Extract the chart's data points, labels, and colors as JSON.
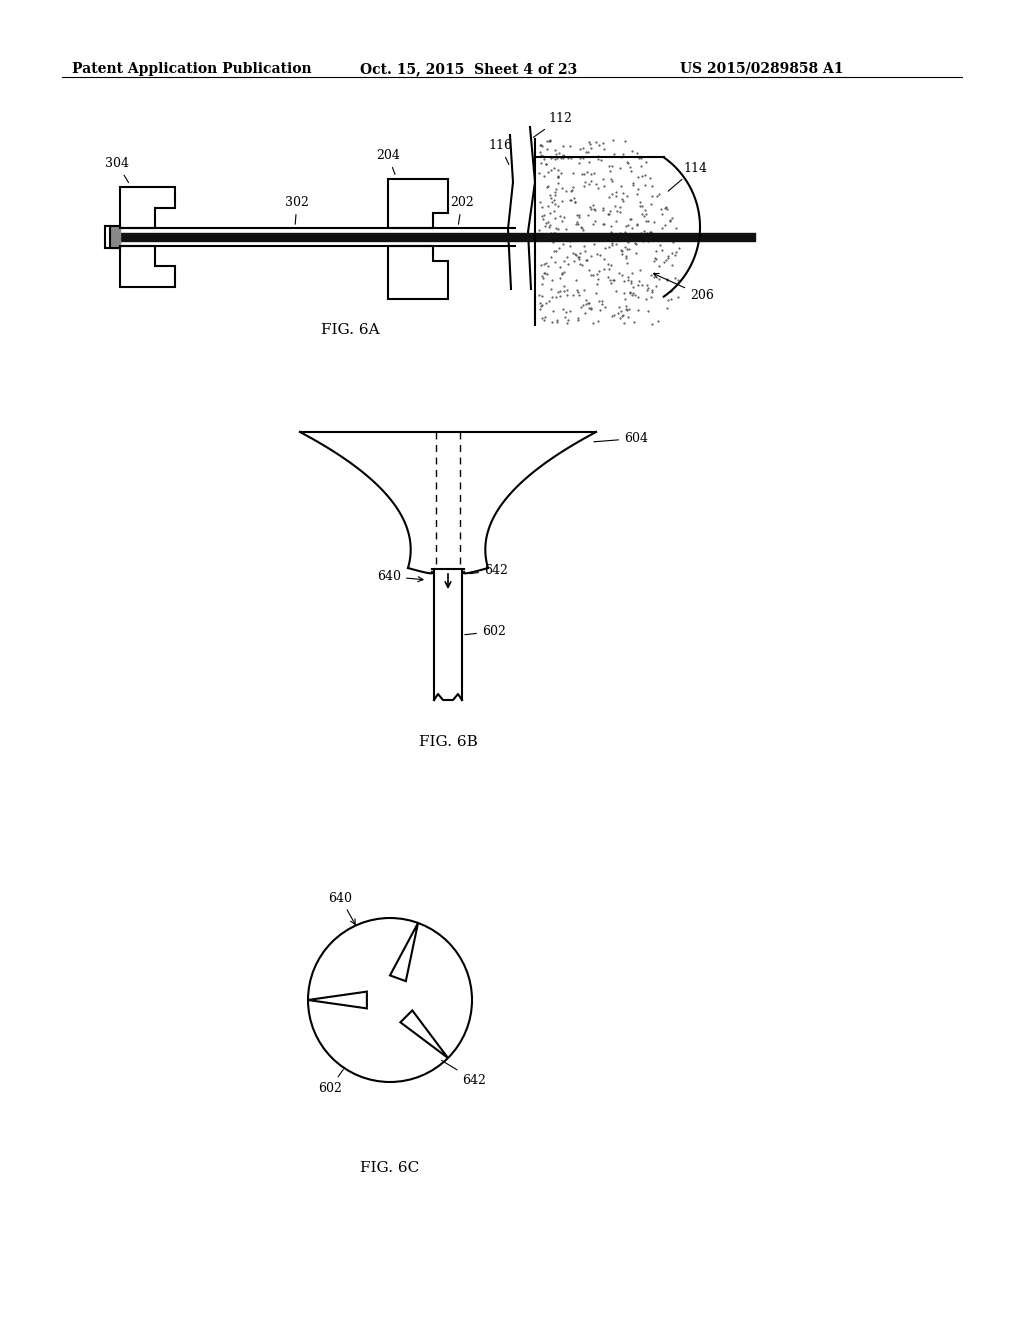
{
  "header_left": "Patent Application Publication",
  "header_mid": "Oct. 15, 2015  Sheet 4 of 23",
  "header_right": "US 2015/0289858 A1",
  "fig6a_caption": "FIG. 6A",
  "fig6b_caption": "FIG. 6B",
  "fig6c_caption": "FIG. 6C",
  "bg_color": "#ffffff",
  "line_color": "#000000"
}
